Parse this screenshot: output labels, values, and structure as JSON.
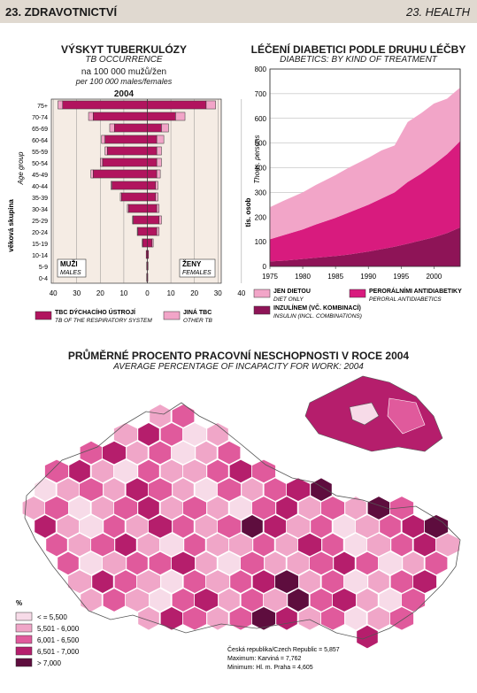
{
  "header": {
    "left": "23. ZDRAVOTNICTVÍ",
    "right": "23. HEALTH"
  },
  "colors": {
    "lightPink": "#f2a5c8",
    "magenta": "#d81b7e",
    "darkMagenta": "#b1145e",
    "plum": "#6e1149",
    "darkest": "#4a0a35",
    "paleBand": "#f5c8dc"
  },
  "tb": {
    "title": "VÝSKYT TUBERKULÓZY",
    "title_en": "TB OCCURRENCE",
    "subtitle": "na 100 000 mužů/žen",
    "subtitle_en": "per 100 000 males/females",
    "year": "2004",
    "ylabel": "věková skupina",
    "ylabel_en": "Age group",
    "males_label": "MUŽI",
    "males_label_en": "MALES",
    "females_label": "ŽENY",
    "females_label_en": "FEMALES",
    "legend": [
      {
        "label": "TBC DÝCHACÍHO ÚSTROJÍ",
        "label_en": "TB OF THE RESPIRATORY SYSTEM",
        "color": "#b1145e"
      },
      {
        "label": "JINÁ TBC",
        "label_en": "OTHER TB",
        "color": "#f2a5c8"
      }
    ],
    "xticks": [
      "40",
      "30",
      "20",
      "10",
      "0",
      "10",
      "20",
      "30",
      "40"
    ]
  },
  "diab": {
    "title": "LÉČENÍ DIABETICI PODLE DRUHU LÉČBY",
    "title_en": "DIABETICS: BY KIND OF TREATMENT",
    "ylabel": "tis. osob",
    "ylabel_en": "Thous. persons",
    "yticks": [
      "0",
      "100",
      "200",
      "300",
      "400",
      "500",
      "600",
      "700",
      "800"
    ],
    "xticks": [
      "1975",
      "1980",
      "1985",
      "1990",
      "1995",
      "2000"
    ],
    "legend": [
      {
        "label": "JEN DIETOU",
        "label_en": "DIET ONLY",
        "color": "#f2a5c8"
      },
      {
        "label": "PERORÁLNÍMI ANTIDIABETIKY",
        "label_en": "PERORAL ANTIDIABETICS",
        "color": "#d81b7e"
      },
      {
        "label": "INZULÍNEM (VČ. KOMBINACÍ)",
        "label_en": "INSULIN (INCL. COMBINATIONS)",
        "color": "#8e1457"
      }
    ]
  },
  "map": {
    "title": "PRŮMĚRNÉ PROCENTO PRACOVNÍ NESCHOPNOSTI V ROCE 2004",
    "title_en": "AVERAGE PERCENTAGE OF INCAPACITY FOR WORK: 2004",
    "unit": "%",
    "legend": [
      {
        "label": "< = 5,500",
        "color": "#f7dbe8"
      },
      {
        "label": "5,501 - 6,000",
        "color": "#f0a6c8"
      },
      {
        "label": "6,001 - 6,500",
        "color": "#e05a9c"
      },
      {
        "label": "6,501 - 7,000",
        "color": "#b51e6c"
      },
      {
        "label": "> 7,000",
        "color": "#5e0d3e"
      }
    ],
    "note1": "Česká republika/Czech Republic = 5,857",
    "note2": "Maximum: Karviná = 7,762",
    "note3": "Minimum: Hl. m. Praha = 4,605"
  },
  "chart_data": [
    {
      "type": "bar",
      "title": "VÝSKYT TUBERKULÓZY",
      "orientation": "horizontal population pyramid",
      "categories": [
        "75+",
        "70-74",
        "65-69",
        "60-64",
        "55-59",
        "50-54",
        "45-49",
        "40-44",
        "35-39",
        "30-34",
        "25-29",
        "20-24",
        "15-19",
        "10-14",
        "5-9",
        "0-4"
      ],
      "series": [
        {
          "name": "TBC DÝCHACÍHO ÚSTROJÍ",
          "side": "males",
          "values": [
            36,
            23,
            14,
            18,
            17,
            19,
            23,
            15,
            11,
            8,
            6,
            4,
            2,
            0.5,
            0.3,
            0.3
          ]
        },
        {
          "name": "JINÁ TBC",
          "side": "males",
          "values": [
            2,
            2,
            2,
            1.5,
            1,
            1,
            1,
            0.5,
            0.5,
            0.5,
            0.3,
            0.3,
            0.2,
            0,
            0,
            0
          ]
        },
        {
          "name": "TBC DÝCHACÍHO ÚSTROJÍ",
          "side": "females",
          "values": [
            25,
            12,
            6,
            4,
            4,
            4,
            4,
            3.5,
            3.5,
            4,
            5,
            4,
            2,
            0.5,
            0.3,
            0.2
          ]
        },
        {
          "name": "JINÁ TBC",
          "side": "females",
          "values": [
            4,
            4,
            3,
            3,
            2,
            2,
            1.5,
            1,
            1,
            1,
            1,
            1,
            0.5,
            0,
            0,
            0
          ]
        }
      ],
      "xlim": [
        -40,
        40
      ]
    },
    {
      "type": "area",
      "title": "LÉČENÍ DIABETICI PODLE DRUHU LÉČBY",
      "x": [
        1975,
        1977,
        1980,
        1982,
        1985,
        1987,
        1990,
        1992,
        1994,
        1996,
        1998,
        2000,
        2002,
        2004
      ],
      "stacked": true,
      "series": [
        {
          "name": "INZULÍNEM (VČ. KOMBINACÍ)",
          "values": [
            20,
            23,
            30,
            35,
            42,
            48,
            60,
            70,
            80,
            92,
            105,
            118,
            135,
            158
          ]
        },
        {
          "name": "PERORÁLNÍMI ANTIDIABETIKY",
          "values": [
            90,
            103,
            120,
            135,
            155,
            170,
            190,
            205,
            220,
            250,
            270,
            295,
            320,
            350
          ]
        },
        {
          "name": "JEN DIETOU",
          "values": [
            130,
            139,
            150,
            160,
            173,
            182,
            190,
            195,
            190,
            243,
            245,
            247,
            225,
            217
          ]
        }
      ],
      "ylim": [
        0,
        800
      ]
    }
  ]
}
